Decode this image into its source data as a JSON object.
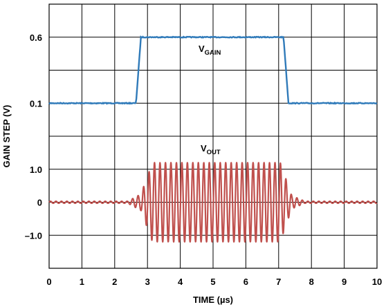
{
  "chart_data": {
    "type": "line",
    "xlabel": "TIME (µs)",
    "ylabel": "GAIN STEP (V)",
    "xlim": [
      0,
      10
    ],
    "x_ticks": [
      "0",
      "1",
      "2",
      "3",
      "4",
      "5",
      "6",
      "7",
      "8",
      "9",
      "10"
    ],
    "y_tick_labels": [
      {
        "label": "0.6",
        "row": 1
      },
      {
        "label": "0.1",
        "row": 3
      },
      {
        "label": "1.0",
        "row": 5
      },
      {
        "label": "0",
        "row": 6
      },
      {
        "label": "–1.0",
        "row": 7
      }
    ],
    "grid": true,
    "series": [
      {
        "name": "V",
        "subscript": "GAIN",
        "color": "#2f7ab9",
        "low_level": 0.1,
        "high_level": 0.6,
        "step_up": {
          "start": 2.65,
          "end": 2.8
        },
        "step_down": {
          "start": 7.15,
          "end": 7.3
        }
      },
      {
        "name": "V",
        "subscript": "OUT",
        "color": "#c0504d",
        "envelope_amplitude": 1.2,
        "residual_amplitude": 0.03,
        "burst_start": 2.8,
        "burst_end": 7.4,
        "period": 0.167
      }
    ]
  }
}
